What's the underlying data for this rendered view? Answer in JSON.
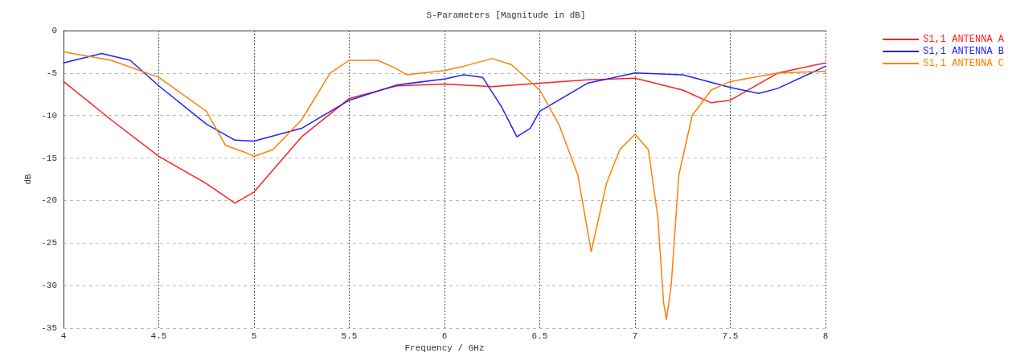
{
  "chart_data": {
    "type": "line",
    "title": "S-Parameters [Magnitude in dB]",
    "xlabel": "Frequency / GHz",
    "ylabel": "dB",
    "xlim": [
      4,
      8
    ],
    "xticks": [
      4,
      4.5,
      5,
      5.5,
      6,
      6.5,
      7,
      7.5,
      8
    ],
    "ylim": [
      -35,
      0
    ],
    "yticks": [
      -35,
      -30,
      -25,
      -20,
      -15,
      -10,
      -5,
      0
    ],
    "grid": true,
    "legend": "top right",
    "marker": "none",
    "line_style": "solid",
    "series": [
      {
        "name": "S1,1 ANTENNA A",
        "color": "#ff2020",
        "x": [
          4,
          4.25,
          4.5,
          4.75,
          4.9,
          5,
          5.25,
          5.5,
          5.75,
          6,
          6.25,
          6.5,
          6.75,
          7,
          7.25,
          7.4,
          7.5,
          7.75,
          8
        ],
        "values": [
          -6,
          -10.5,
          -14.8,
          -18,
          -20.3,
          -19,
          -12.5,
          -8,
          -6.5,
          -6.3,
          -6.6,
          -6.2,
          -5.8,
          -5.6,
          -7,
          -8.5,
          -8.2,
          -5,
          -3.8
        ]
      },
      {
        "name": "S1,1 ANTENNA B",
        "color": "#2020ff",
        "x": [
          4,
          4.2,
          4.35,
          4.5,
          4.75,
          4.9,
          5,
          5.25,
          5.5,
          5.75,
          6,
          6.1,
          6.2,
          6.3,
          6.38,
          6.45,
          6.5,
          6.75,
          7,
          7.25,
          7.5,
          7.65,
          7.75,
          8
        ],
        "values": [
          -3.8,
          -2.7,
          -3.5,
          -6.5,
          -11,
          -12.9,
          -13,
          -11.5,
          -8.2,
          -6.4,
          -5.7,
          -5.2,
          -5.5,
          -9,
          -12.5,
          -11.5,
          -9.5,
          -6.2,
          -5,
          -5.2,
          -6.7,
          -7.4,
          -6.8,
          -4.2
        ]
      },
      {
        "name": "S1,1 ANTENNA C",
        "color": "#ff8000",
        "x": [
          4,
          4.25,
          4.5,
          4.75,
          4.85,
          4.95,
          5,
          5.1,
          5.25,
          5.4,
          5.5,
          5.65,
          5.75,
          5.8,
          6,
          6.1,
          6.25,
          6.35,
          6.5,
          6.6,
          6.7,
          6.77,
          6.85,
          6.92,
          7,
          7.07,
          7.12,
          7.15,
          7.165,
          7.19,
          7.23,
          7.3,
          7.4,
          7.5,
          7.75,
          8
        ],
        "values": [
          -2.5,
          -3.5,
          -5.5,
          -9.5,
          -13.5,
          -14.3,
          -14.8,
          -14,
          -10.5,
          -5,
          -3.5,
          -3.5,
          -4.5,
          -5.2,
          -4.7,
          -4.2,
          -3.3,
          -4,
          -7,
          -11,
          -17,
          -26,
          -18,
          -14,
          -12.2,
          -14,
          -22,
          -32,
          -34,
          -30,
          -17,
          -10,
          -7,
          -6,
          -5,
          -4.8
        ]
      }
    ]
  }
}
